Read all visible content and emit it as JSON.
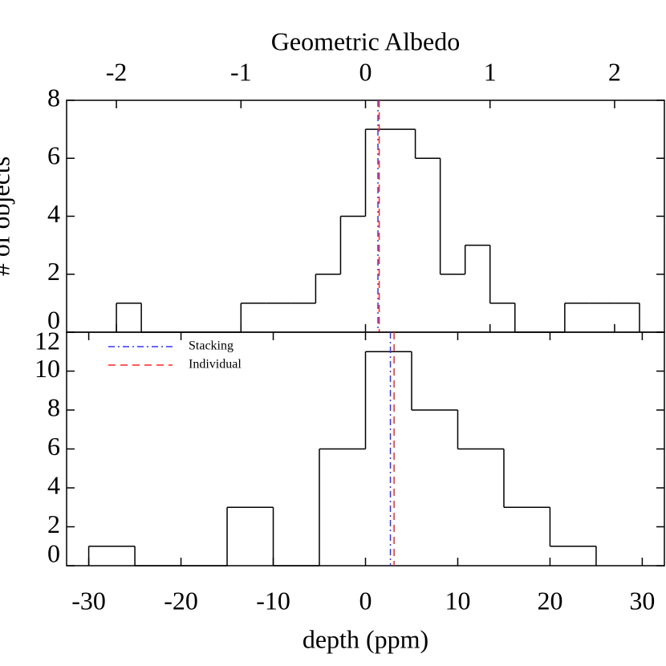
{
  "chart_data": [
    {
      "type": "histogram",
      "xlabel": "Geometric Albedo",
      "ylabel": "# of objects",
      "xaxis_position": "top",
      "bins": [
        -2.0,
        -1.8,
        -1.6,
        -1.4,
        -1.2,
        -1.0,
        -0.8,
        -0.6,
        -0.4,
        -0.2,
        0.0,
        0.2,
        0.4,
        0.6,
        0.8,
        1.0,
        1.2,
        1.4,
        1.6,
        1.8,
        2.0,
        2.2
      ],
      "values": [
        1,
        0,
        0,
        0,
        0,
        1,
        1,
        1,
        2,
        4,
        7,
        7,
        6,
        2,
        3,
        1,
        0,
        0,
        1,
        1,
        1
      ],
      "color": "#000000",
      "xlim": [
        -2.4,
        2.4
      ],
      "xticks": [
        -2,
        -1,
        0,
        1,
        2
      ],
      "ylim": [
        0,
        8
      ],
      "yticks": [
        0,
        2,
        4,
        6,
        8
      ],
      "lines": [
        {
          "color": "#3333ff",
          "style": "dashdot",
          "value": 0.1
        },
        {
          "color": "#ff2222",
          "style": "dashed",
          "value": 0.11
        }
      ]
    },
    {
      "type": "histogram",
      "xlabel": "depth (ppm)",
      "xaxis_position": "bottom",
      "bins": [
        -30,
        -25,
        -20,
        -15,
        -10,
        -5,
        0,
        5,
        10,
        15,
        20,
        25
      ],
      "values": [
        1,
        0,
        0,
        3,
        0,
        6,
        11,
        8,
        6,
        3,
        1
      ],
      "color": "#000000",
      "xlim": [
        -32.4,
        32.4
      ],
      "xticks": [
        -30,
        -20,
        -10,
        0,
        10,
        20,
        30
      ],
      "ylim": [
        0,
        12
      ],
      "yticks": [
        0,
        2,
        4,
        6,
        8,
        10,
        12
      ],
      "legend": "upper left",
      "lines": [
        {
          "name": "Stacking",
          "color": "#3333ff",
          "style": "dashdot",
          "value": 2.7
        },
        {
          "name": "Individual",
          "color": "#ff2222",
          "style": "dashed",
          "value": 3.1
        }
      ]
    }
  ]
}
